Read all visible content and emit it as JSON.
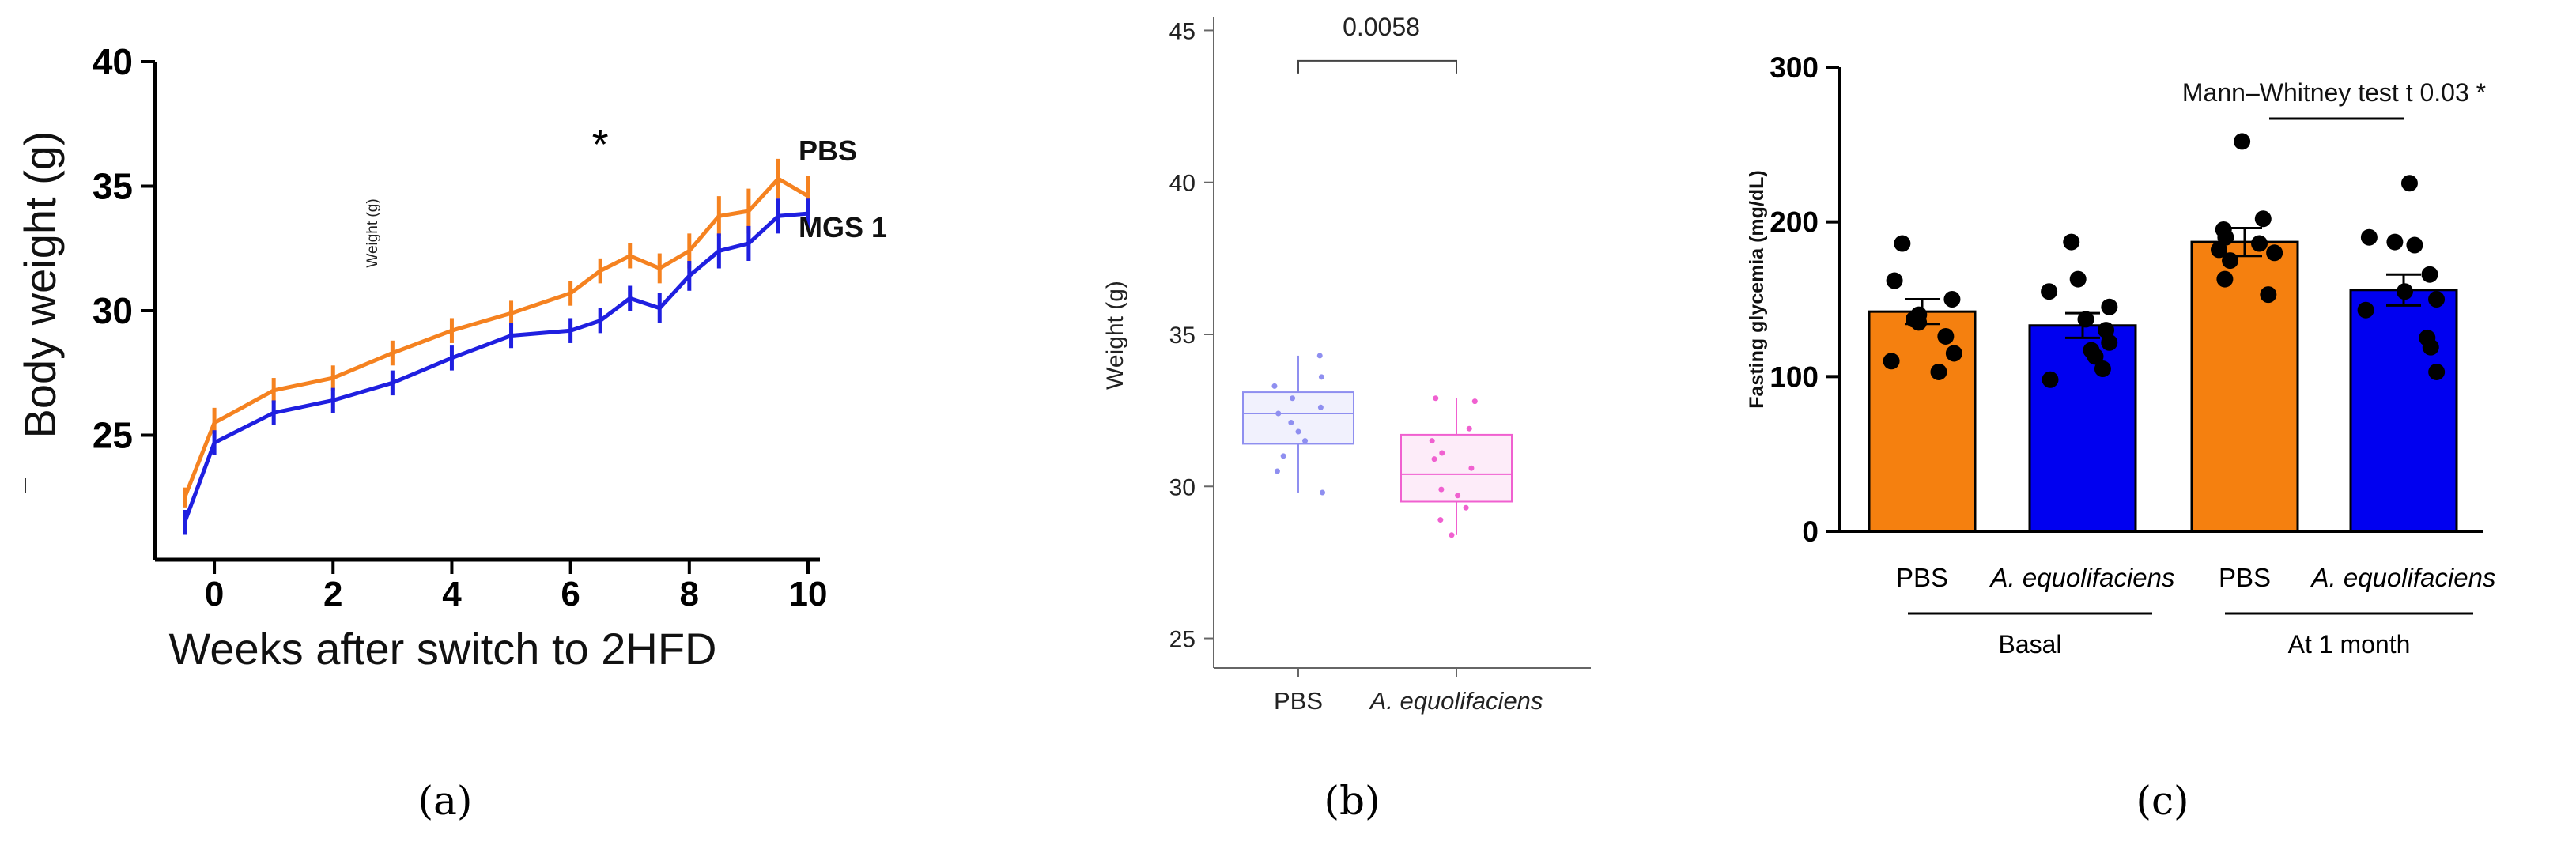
{
  "chart_data": [
    {
      "type": "line",
      "panel_label": "(a)",
      "xlabel": "Weeks after switch to 2HFD",
      "ylabel": "Body weight (g)",
      "inset_note": "Weight (g)",
      "x_ticks": [
        "0",
        "2",
        "4",
        "6",
        "8",
        "10"
      ],
      "y_ticks": [
        "25",
        "30",
        "35",
        "40"
      ],
      "xlim": [
        -1,
        10.2
      ],
      "ylim": [
        20,
        40
      ],
      "x": [
        -0.5,
        0,
        1,
        2,
        3,
        4,
        5,
        6,
        6.5,
        7,
        7.5,
        8,
        8.5,
        9,
        9.5,
        10
      ],
      "series": [
        {
          "name": "PBS",
          "color": "#F58220",
          "values": [
            22.5,
            25.5,
            26.8,
            27.3,
            28.3,
            29.2,
            29.9,
            30.7,
            31.6,
            32.2,
            31.7,
            32.4,
            33.8,
            34.0,
            35.3,
            34.6
          ],
          "errors": [
            0.4,
            0.6,
            0.5,
            0.5,
            0.5,
            0.5,
            0.5,
            0.5,
            0.5,
            0.5,
            0.6,
            0.7,
            0.8,
            0.9,
            0.8,
            0.8
          ]
        },
        {
          "name": "MGS 1",
          "color": "#1F1FE0",
          "values": [
            21.5,
            24.7,
            25.9,
            26.4,
            27.1,
            28.1,
            29.0,
            29.2,
            29.6,
            30.5,
            30.1,
            31.4,
            32.4,
            32.7,
            33.8,
            33.9
          ],
          "errors": [
            0.5,
            0.5,
            0.5,
            0.5,
            0.5,
            0.5,
            0.5,
            0.5,
            0.5,
            0.5,
            0.6,
            0.6,
            0.7,
            0.7,
            0.7,
            0.6
          ]
        }
      ],
      "annotations": [
        {
          "text": "*",
          "x": 6.5,
          "y": 37.3
        }
      ]
    },
    {
      "type": "box",
      "panel_label": "(b)",
      "ylabel": "Weight (g)",
      "y_ticks": [
        "25",
        "30",
        "35",
        "40",
        "45"
      ],
      "ylim": [
        24,
        46
      ],
      "categories": [
        "PBS",
        "A. equolifaciens"
      ],
      "colors": [
        "#8F8FF0",
        "#F060D0"
      ],
      "boxes": [
        {
          "whisker_low": 29.8,
          "q1": 31.4,
          "median": 32.4,
          "q3": 33.1,
          "whisker_high": 34.3,
          "points": [
            34.3,
            33.6,
            33.3,
            32.9,
            32.6,
            32.4,
            32.1,
            31.8,
            31.5,
            31.0,
            30.5,
            29.8
          ]
        },
        {
          "whisker_low": 28.4,
          "q1": 29.5,
          "median": 30.4,
          "q3": 31.7,
          "whisker_high": 32.9,
          "points": [
            32.9,
            32.8,
            31.9,
            31.5,
            31.1,
            30.9,
            30.6,
            29.9,
            29.7,
            29.3,
            28.9,
            28.4
          ]
        }
      ],
      "comparison": {
        "text": "0.0058",
        "between": [
          "PBS",
          "A. equolifaciens"
        ]
      }
    },
    {
      "type": "bar",
      "panel_label": "(c)",
      "ylabel": "Fasting glycemia (mg/dL)",
      "y_ticks": [
        "0",
        "100",
        "200",
        "300"
      ],
      "ylim": [
        0,
        300
      ],
      "categories": [
        "PBS",
        "A. equolifaciens",
        "PBS",
        "A. equolifaciens"
      ],
      "groups": [
        {
          "label": "Basal",
          "members": [
            0,
            1
          ]
        },
        {
          "label": "At 1 month",
          "members": [
            2,
            3
          ]
        }
      ],
      "colors": [
        "#F5800F",
        "#0000F0",
        "#F5800F",
        "#0000F0"
      ],
      "values": [
        142,
        133,
        187,
        156
      ],
      "errors": [
        8,
        8,
        9,
        10
      ],
      "points": [
        [
          186,
          162,
          150,
          140,
          137,
          135,
          126,
          115,
          110,
          103
        ],
        [
          187,
          163,
          155,
          145,
          137,
          130,
          122,
          117,
          113,
          105,
          98
        ],
        [
          252,
          202,
          195,
          190,
          186,
          182,
          180,
          175,
          163,
          153
        ],
        [
          225,
          190,
          187,
          185,
          166,
          155,
          150,
          143,
          125,
          119,
          103
        ]
      ],
      "comparison": {
        "text": "Mann–Whitney test t 0.03 *",
        "between": [
          2,
          3
        ]
      }
    }
  ]
}
